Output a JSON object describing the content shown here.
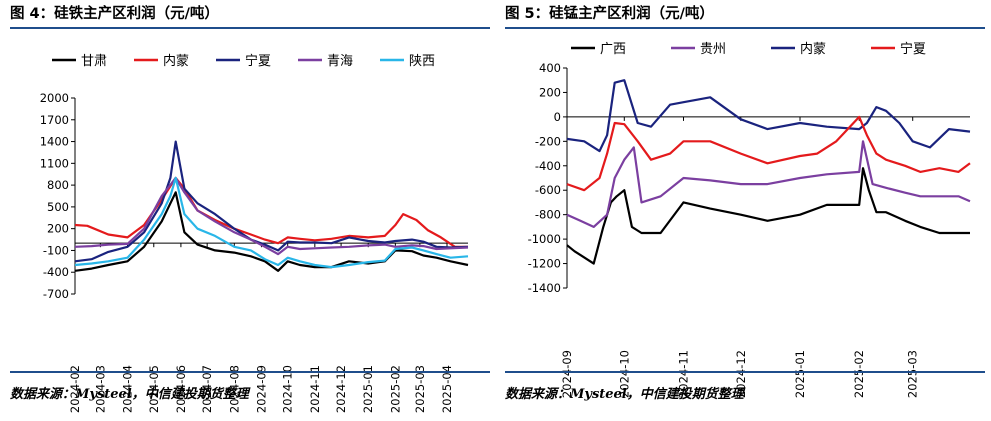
{
  "panels": [
    {
      "title": "图 4：硅铁主产区利润（元/吨）",
      "source": "数据来源：Mysteel，中信建投期货整理"
    },
    {
      "title": "图 5：硅锰主产区利润（元/吨）",
      "source": "数据来源：Mysteel，中信建投期货整理"
    }
  ],
  "chart_data": [
    {
      "type": "line",
      "title": "图 4：硅铁主产区利润（元/吨）",
      "xlabel": "",
      "ylabel": "",
      "ylim": [
        -700,
        2000
      ],
      "yticks": [
        2000,
        1700,
        1400,
        1100,
        800,
        500,
        200,
        -100,
        -400,
        -700
      ],
      "xlim": [
        "2024-02-01",
        "2025-04-25"
      ],
      "xticks": [
        "2024-02",
        "2024-03",
        "2024-04",
        "2024-05",
        "2024-06",
        "2024-07",
        "2024-08",
        "2024-09",
        "2024-10",
        "2024-11",
        "2024-12",
        "2025-01",
        "2025-02",
        "2025-03",
        "2025-04"
      ],
      "legend": "top",
      "grid": false,
      "series": [
        {
          "name": "甘肃",
          "color": "#000000",
          "x": [
            "2024-02-01",
            "2024-02-20",
            "2024-03-10",
            "2024-04-01",
            "2024-04-20",
            "2024-05-10",
            "2024-05-20",
            "2024-05-26",
            "2024-06-05",
            "2024-06-20",
            "2024-07-10",
            "2024-08-01",
            "2024-08-20",
            "2024-09-05",
            "2024-09-20",
            "2024-10-01",
            "2024-10-15",
            "2024-11-01",
            "2024-11-20",
            "2024-12-10",
            "2025-01-01",
            "2025-01-20",
            "2025-02-01",
            "2025-02-20",
            "2025-03-05",
            "2025-03-20",
            "2025-04-05",
            "2025-04-25"
          ],
          "values": [
            -380,
            -350,
            -300,
            -250,
            -50,
            300,
            550,
            700,
            150,
            -20,
            -100,
            -130,
            -180,
            -250,
            -380,
            -250,
            -300,
            -330,
            -330,
            -250,
            -280,
            -250,
            -100,
            -110,
            -170,
            -200,
            -250,
            -300
          ]
        },
        {
          "name": "内蒙",
          "color": "#e41a1c",
          "x": [
            "2024-02-01",
            "2024-02-15",
            "2024-03-10",
            "2024-04-01",
            "2024-04-20",
            "2024-05-10",
            "2024-05-26",
            "2024-06-05",
            "2024-06-20",
            "2024-07-10",
            "2024-08-01",
            "2024-08-20",
            "2024-09-05",
            "2024-09-20",
            "2024-10-01",
            "2024-10-15",
            "2024-11-01",
            "2024-11-20",
            "2024-12-10",
            "2025-01-01",
            "2025-01-20",
            "2025-02-01",
            "2025-02-10",
            "2025-02-25",
            "2025-03-10",
            "2025-03-25",
            "2025-04-10",
            "2025-04-25"
          ],
          "values": [
            250,
            240,
            120,
            80,
            250,
            600,
            900,
            750,
            450,
            320,
            200,
            120,
            50,
            0,
            80,
            60,
            40,
            60,
            100,
            80,
            100,
            250,
            400,
            320,
            180,
            80,
            -50,
            -50
          ]
        },
        {
          "name": "宁夏",
          "color": "#1a237e",
          "x": [
            "2024-02-01",
            "2024-02-20",
            "2024-03-10",
            "2024-04-01",
            "2024-04-20",
            "2024-05-10",
            "2024-05-20",
            "2024-05-26",
            "2024-06-05",
            "2024-06-20",
            "2024-07-10",
            "2024-08-01",
            "2024-08-20",
            "2024-09-05",
            "2024-09-20",
            "2024-10-01",
            "2024-10-15",
            "2024-11-01",
            "2024-11-20",
            "2024-12-10",
            "2025-01-01",
            "2025-01-20",
            "2025-02-01",
            "2025-02-20",
            "2025-03-05",
            "2025-03-20",
            "2025-04-05",
            "2025-04-25"
          ],
          "values": [
            -250,
            -220,
            -120,
            -50,
            150,
            550,
            900,
            1400,
            750,
            550,
            400,
            200,
            50,
            -20,
            -100,
            20,
            10,
            10,
            0,
            80,
            30,
            10,
            30,
            50,
            20,
            -50,
            -60,
            -50
          ]
        },
        {
          "name": "青海",
          "color": "#7b3fa0",
          "x": [
            "2024-02-01",
            "2024-02-20",
            "2024-03-10",
            "2024-04-01",
            "2024-04-20",
            "2024-05-10",
            "2024-05-26",
            "2024-06-05",
            "2024-06-20",
            "2024-07-10",
            "2024-08-01",
            "2024-08-20",
            "2024-09-05",
            "2024-09-20",
            "2024-10-01",
            "2024-10-15",
            "2024-11-01",
            "2024-11-20",
            "2024-12-10",
            "2025-01-01",
            "2025-01-20",
            "2025-02-01",
            "2025-02-20",
            "2025-03-05",
            "2025-03-20",
            "2025-04-05",
            "2025-04-25"
          ],
          "values": [
            -50,
            -40,
            -20,
            -10,
            200,
            650,
            900,
            700,
            450,
            300,
            150,
            50,
            -50,
            -150,
            -50,
            -80,
            -70,
            -60,
            -50,
            -30,
            -20,
            -50,
            -30,
            -40,
            -80,
            -70,
            -60
          ]
        },
        {
          "name": "陕西",
          "color": "#29b6e8",
          "x": [
            "2024-02-01",
            "2024-02-20",
            "2024-03-10",
            "2024-04-01",
            "2024-04-20",
            "2024-05-10",
            "2024-05-20",
            "2024-05-26",
            "2024-06-05",
            "2024-06-20",
            "2024-07-10",
            "2024-08-01",
            "2024-08-20",
            "2024-09-05",
            "2024-09-20",
            "2024-10-01",
            "2024-10-15",
            "2024-11-01",
            "2024-11-20",
            "2024-12-10",
            "2025-01-01",
            "2025-01-20",
            "2025-02-01",
            "2025-02-20",
            "2025-03-05",
            "2025-03-20",
            "2025-04-05",
            "2025-04-25"
          ],
          "values": [
            -300,
            -280,
            -250,
            -200,
            50,
            400,
            650,
            900,
            400,
            200,
            100,
            -50,
            -100,
            -220,
            -300,
            -200,
            -250,
            -300,
            -330,
            -300,
            -260,
            -240,
            -80,
            -60,
            -100,
            -150,
            -200,
            -180
          ]
        }
      ]
    },
    {
      "type": "line",
      "title": "图 5：硅锰主产区利润（元/吨）",
      "xlabel": "",
      "ylabel": "",
      "ylim": [
        -1400,
        400
      ],
      "yticks": [
        400,
        200,
        0,
        -200,
        -400,
        -600,
        -800,
        -1000,
        -1200,
        -1400
      ],
      "xlim": [
        "2024-09-01",
        "2025-03-31"
      ],
      "xticks": [
        "2024-09",
        "2024-10",
        "2024-11",
        "2024-12",
        "2025-01",
        "2025-02",
        "2025-03"
      ],
      "legend": "top",
      "grid": false,
      "series": [
        {
          "name": "广西",
          "color": "#000000",
          "x": [
            "2024-09-01",
            "2024-09-05",
            "2024-09-10",
            "2024-09-15",
            "2024-09-20",
            "2024-09-24",
            "2024-09-27",
            "2024-10-01",
            "2024-10-05",
            "2024-10-10",
            "2024-10-20",
            "2024-11-01",
            "2024-11-15",
            "2024-12-01",
            "2024-12-15",
            "2025-01-01",
            "2025-01-15",
            "2025-02-01",
            "2025-02-03",
            "2025-02-06",
            "2025-02-10",
            "2025-02-15",
            "2025-02-25",
            "2025-03-05",
            "2025-03-15",
            "2025-03-25",
            "2025-03-31"
          ],
          "values": [
            -1050,
            -1100,
            -1150,
            -1200,
            -900,
            -700,
            -650,
            -600,
            -900,
            -950,
            -950,
            -700,
            -750,
            -800,
            -850,
            -800,
            -720,
            -720,
            -420,
            -600,
            -780,
            -780,
            -850,
            -900,
            -950,
            -950,
            -950
          ]
        },
        {
          "name": "贵州",
          "color": "#7b3fa0",
          "x": [
            "2024-09-01",
            "2024-09-08",
            "2024-09-15",
            "2024-09-22",
            "2024-09-26",
            "2024-10-01",
            "2024-10-06",
            "2024-10-10",
            "2024-10-20",
            "2024-11-01",
            "2024-11-15",
            "2024-12-01",
            "2024-12-15",
            "2025-01-01",
            "2025-01-15",
            "2025-02-01",
            "2025-02-03",
            "2025-02-08",
            "2025-02-15",
            "2025-02-25",
            "2025-03-05",
            "2025-03-15",
            "2025-03-25",
            "2025-03-31"
          ],
          "values": [
            -800,
            -850,
            -900,
            -800,
            -500,
            -350,
            -250,
            -700,
            -650,
            -500,
            -520,
            -550,
            -550,
            -500,
            -470,
            -450,
            -200,
            -550,
            -580,
            -620,
            -650,
            -650,
            -650,
            -690
          ]
        },
        {
          "name": "内蒙",
          "color": "#1a237e",
          "x": [
            "2024-09-01",
            "2024-09-10",
            "2024-09-18",
            "2024-09-22",
            "2024-09-26",
            "2024-10-01",
            "2024-10-08",
            "2024-10-15",
            "2024-10-25",
            "2024-11-01",
            "2024-11-15",
            "2024-12-01",
            "2024-12-15",
            "2025-01-01",
            "2025-01-15",
            "2025-02-01",
            "2025-02-05",
            "2025-02-10",
            "2025-02-15",
            "2025-02-22",
            "2025-03-01",
            "2025-03-10",
            "2025-03-20",
            "2025-03-31"
          ],
          "values": [
            -180,
            -200,
            -280,
            -150,
            280,
            300,
            -50,
            -80,
            100,
            120,
            160,
            -20,
            -100,
            -50,
            -80,
            -100,
            -50,
            80,
            50,
            -50,
            -200,
            -250,
            -100,
            -120
          ]
        },
        {
          "name": "宁夏",
          "color": "#e41a1c",
          "x": [
            "2024-09-01",
            "2024-09-10",
            "2024-09-18",
            "2024-09-22",
            "2024-09-26",
            "2024-10-01",
            "2024-10-08",
            "2024-10-15",
            "2024-10-25",
            "2024-11-01",
            "2024-11-15",
            "2024-12-01",
            "2024-12-15",
            "2025-01-01",
            "2025-01-10",
            "2025-01-20",
            "2025-02-01",
            "2025-02-05",
            "2025-02-10",
            "2025-02-15",
            "2025-02-25",
            "2025-03-05",
            "2025-03-15",
            "2025-03-25",
            "2025-03-31"
          ],
          "values": [
            -550,
            -600,
            -500,
            -300,
            -50,
            -60,
            -200,
            -350,
            -300,
            -200,
            -200,
            -300,
            -380,
            -320,
            -300,
            -200,
            0,
            -150,
            -300,
            -350,
            -400,
            -450,
            -420,
            -450,
            -380
          ]
        }
      ]
    }
  ]
}
